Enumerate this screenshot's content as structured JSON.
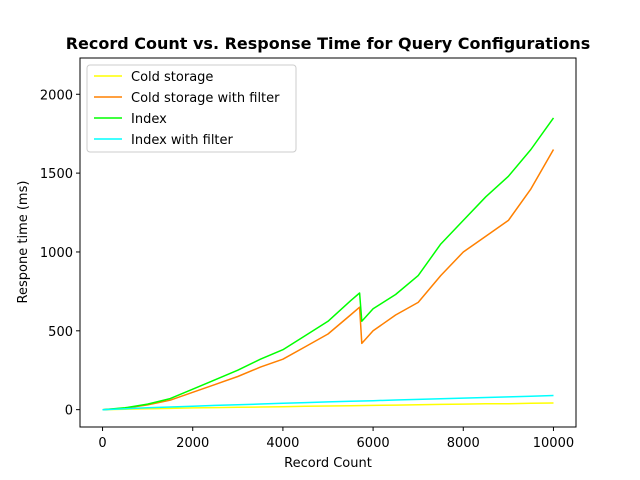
{
  "chart_data": {
    "type": "line",
    "title": "Record Count vs. Response Time for Query Configurations",
    "xlabel": "Record Count",
    "ylabel": "Respone time (ms)",
    "xlim": [
      -500,
      10500
    ],
    "ylim": [
      -110,
      2230
    ],
    "xticks": [
      0,
      2000,
      4000,
      6000,
      8000,
      10000
    ],
    "yticks": [
      0,
      500,
      1000,
      1500,
      2000
    ],
    "grid": false,
    "legend_position": "top-left",
    "series": [
      {
        "name": "Cold storage",
        "color": "#ffff00",
        "x": [
          0,
          500,
          1000,
          1500,
          2000,
          2500,
          3000,
          3500,
          4000,
          4500,
          5000,
          5500,
          6000,
          6500,
          7000,
          7500,
          8000,
          8500,
          9000,
          9500,
          10000
        ],
        "y": [
          0,
          3,
          6,
          8,
          11,
          13,
          15,
          17,
          19,
          21,
          23,
          25,
          27,
          29,
          31,
          33,
          35,
          37,
          38,
          40,
          42
        ]
      },
      {
        "name": "Cold storage with filter",
        "color": "#ff8000",
        "x": [
          0,
          500,
          1000,
          1500,
          2000,
          2500,
          3000,
          3500,
          4000,
          4500,
          5000,
          5500,
          5700,
          5750,
          6000,
          6500,
          7000,
          7500,
          8000,
          8500,
          9000,
          9500,
          10000
        ],
        "y": [
          0,
          10,
          30,
          60,
          110,
          160,
          210,
          270,
          320,
          400,
          480,
          600,
          650,
          420,
          500,
          600,
          680,
          850,
          1000,
          1100,
          1200,
          1400,
          1650
        ]
      },
      {
        "name": "Index",
        "color": "#00ff00",
        "x": [
          0,
          500,
          1000,
          1500,
          2000,
          2500,
          3000,
          3500,
          4000,
          4500,
          5000,
          5500,
          5700,
          5750,
          6000,
          6500,
          7000,
          7500,
          8000,
          8500,
          9000,
          9500,
          10000
        ],
        "y": [
          0,
          12,
          35,
          70,
          130,
          190,
          250,
          320,
          380,
          470,
          560,
          690,
          740,
          560,
          640,
          730,
          850,
          1050,
          1200,
          1350,
          1480,
          1650,
          1850
        ]
      },
      {
        "name": "Index with filter",
        "color": "#00ffff",
        "x": [
          0,
          500,
          1000,
          1500,
          2000,
          2500,
          3000,
          3500,
          4000,
          4500,
          5000,
          5500,
          6000,
          6500,
          7000,
          7500,
          8000,
          8500,
          9000,
          9500,
          10000
        ],
        "y": [
          0,
          6,
          12,
          17,
          22,
          27,
          31,
          36,
          40,
          45,
          49,
          53,
          57,
          61,
          65,
          69,
          73,
          77,
          81,
          85,
          90
        ]
      }
    ]
  }
}
